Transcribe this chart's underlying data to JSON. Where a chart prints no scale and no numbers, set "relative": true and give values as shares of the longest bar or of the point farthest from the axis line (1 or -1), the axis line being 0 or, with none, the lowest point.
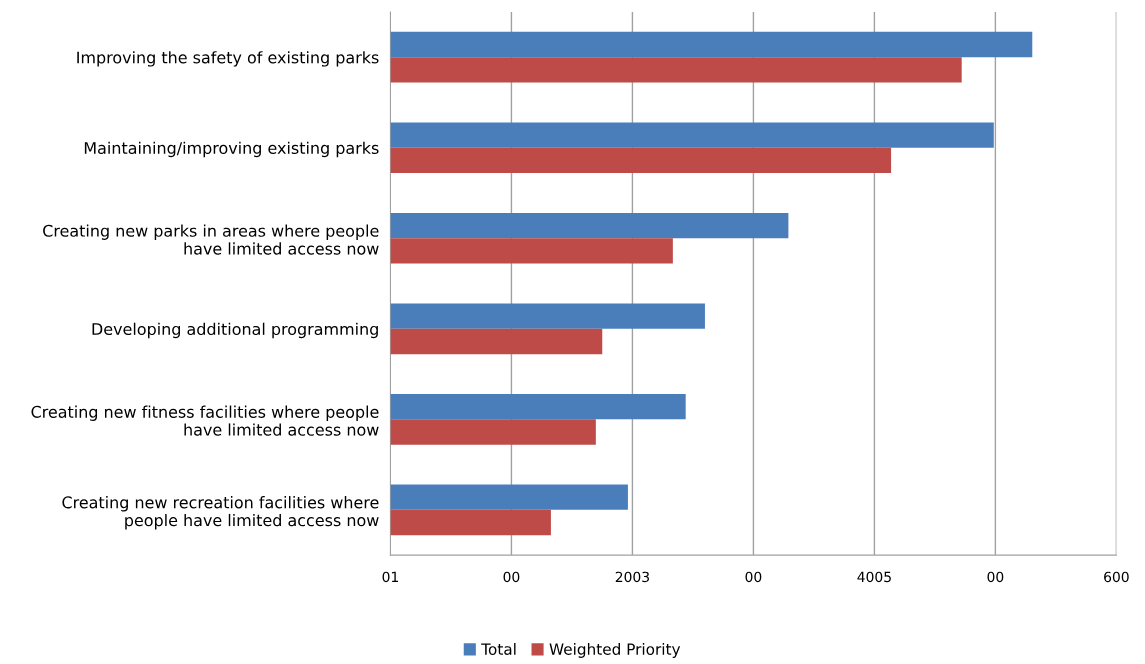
{
  "chart_data": {
    "type": "bar",
    "orientation": "horizontal",
    "relative": true,
    "categories": [
      "Improving the safety of existing parks",
      "Maintaining/improving existing parks",
      "Creating new parks in areas where people\nhave limited access now",
      "Developing additional programming",
      "Creating new fitness facilities where people\nhave limited access now",
      "Creating new recreation facilities where\npeople have limited access now"
    ],
    "series": [
      {
        "name": "Total",
        "color": "#4a7ebb",
        "values": [
          1,
          0.94,
          0.62,
          0.49,
          0.46,
          0.37
        ]
      },
      {
        "name": "Weighted Priority",
        "color": "#be4b48",
        "values": [
          0.89,
          0.78,
          0.44,
          0.33,
          0.32,
          0.25
        ]
      }
    ],
    "annotations": [
      "01",
      "00",
      "2003",
      "00",
      "4005",
      "00",
      "600"
    ],
    "grid": "x",
    "legend": "bottom"
  }
}
